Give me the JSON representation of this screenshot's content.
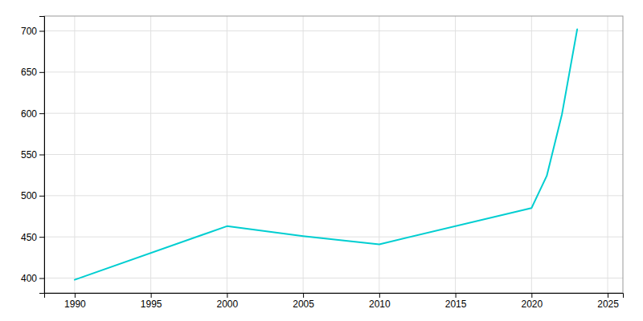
{
  "chart_data": {
    "type": "line",
    "x": [
      1990,
      2000,
      2005,
      2010,
      2020,
      2021,
      2022,
      2023
    ],
    "values": [
      398,
      463,
      451,
      441,
      485,
      524,
      599,
      702
    ],
    "color": "#00CED1",
    "xlim": [
      1988,
      2026
    ],
    "ylim": [
      382,
      718
    ],
    "xticks": [
      1990,
      1995,
      2000,
      2005,
      2010,
      2015,
      2020,
      2025
    ],
    "yticks": [
      400,
      450,
      500,
      550,
      600,
      650,
      700
    ],
    "grid": true
  }
}
